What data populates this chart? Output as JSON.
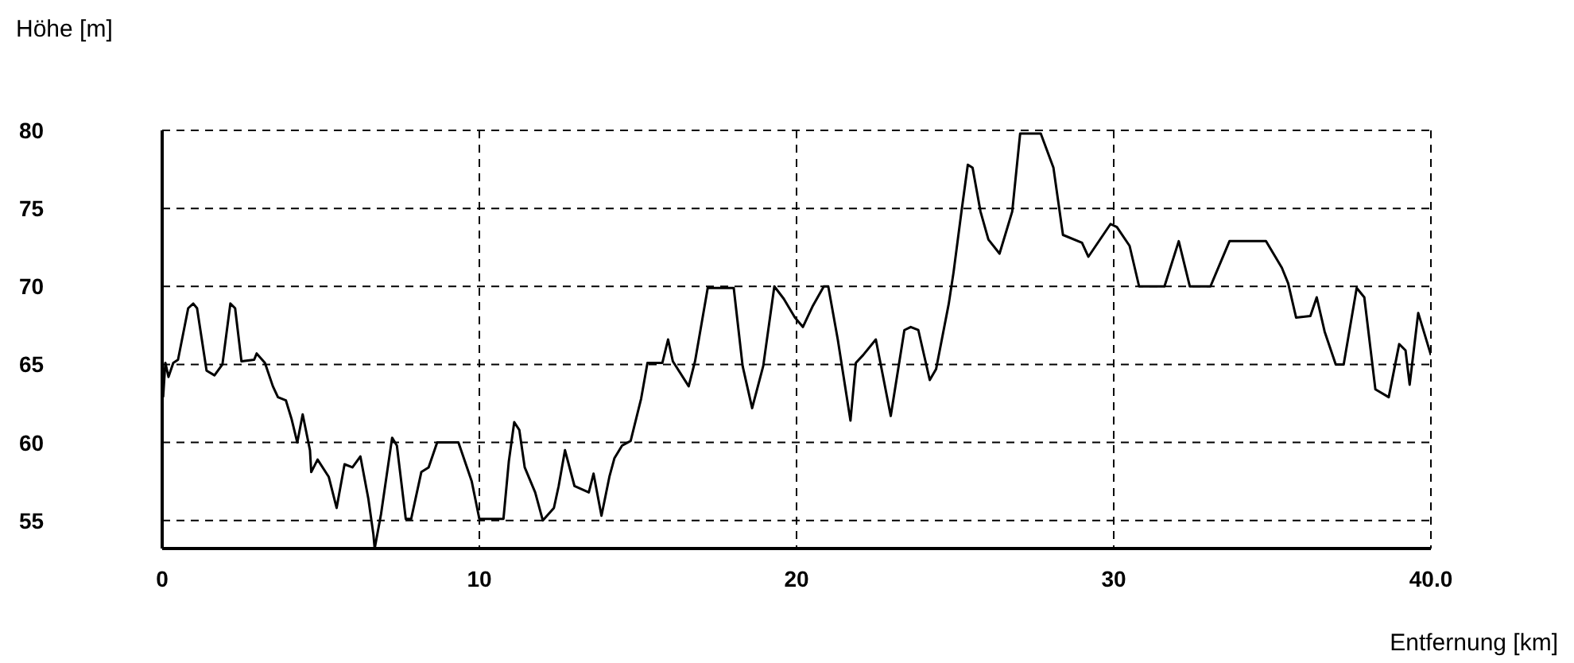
{
  "chart_data": {
    "type": "line",
    "xlabel": "Entfernung [km]",
    "ylabel": "Höhe [m]",
    "xlim": [
      0,
      40
    ],
    "xticks": [
      0,
      10,
      20,
      30,
      {
        "value": 40,
        "label": "40.0"
      }
    ],
    "ylim": [
      53.2,
      80
    ],
    "yticks": [
      55,
      60,
      65,
      70,
      75,
      80
    ],
    "grid": true,
    "marker": "none",
    "line_style": "solid",
    "series": [
      {
        "color": "#000000",
        "x": [
          0.03,
          0.1,
          0.2,
          0.35,
          0.5,
          0.82,
          0.98,
          1.1,
          1.4,
          1.65,
          1.9,
          2.15,
          2.3,
          2.5,
          2.9,
          2.98,
          3.24,
          3.49,
          3.65,
          3.9,
          4.08,
          4.26,
          4.43,
          4.66,
          4.7,
          4.9,
          5.25,
          5.5,
          5.75,
          6.0,
          6.25,
          6.5,
          6.66,
          6.7,
          6.9,
          7.25,
          7.4,
          7.68,
          7.85,
          8.17,
          8.4,
          8.67,
          9.34,
          9.76,
          10.0,
          10.76,
          10.93,
          11.1,
          11.26,
          11.43,
          11.76,
          12.0,
          12.35,
          12.5,
          12.7,
          13.0,
          13.45,
          13.6,
          13.85,
          14.1,
          14.26,
          14.5,
          14.77,
          15.1,
          15.3,
          15.77,
          15.95,
          16.1,
          16.6,
          16.8,
          17.2,
          18.02,
          18.3,
          18.6,
          18.95,
          19.3,
          19.6,
          19.95,
          20.2,
          20.5,
          20.86,
          21.0,
          21.3,
          21.7,
          21.87,
          22.1,
          22.5,
          22.97,
          23.4,
          23.6,
          23.84,
          24.2,
          24.4,
          24.8,
          24.95,
          25.2,
          25.4,
          25.55,
          25.8,
          26.05,
          26.4,
          26.8,
          27.05,
          27.7,
          28.1,
          28.4,
          29.0,
          29.2,
          29.9,
          30.1,
          30.5,
          30.8,
          31.6,
          32.05,
          32.4,
          33.05,
          33.65,
          34.8,
          35.3,
          35.5,
          35.75,
          36.2,
          36.4,
          36.65,
          37.0,
          37.25,
          37.66,
          37.9,
          38.25,
          38.67,
          39.0,
          39.2,
          39.33,
          39.6,
          40.0
        ],
        "values": [
          62.9,
          65.1,
          64.2,
          65.1,
          65.3,
          68.6,
          68.9,
          68.6,
          64.6,
          64.3,
          65.0,
          68.9,
          68.6,
          65.2,
          65.3,
          65.7,
          65.1,
          63.6,
          62.9,
          62.7,
          61.5,
          60.0,
          61.8,
          59.5,
          58.1,
          58.9,
          57.8,
          55.8,
          58.6,
          58.4,
          59.1,
          56.4,
          54.1,
          53.2,
          55.4,
          60.3,
          59.8,
          55.1,
          55.1,
          58.1,
          58.4,
          60.0,
          60.0,
          57.5,
          55.1,
          55.1,
          58.8,
          61.3,
          60.8,
          58.4,
          56.8,
          55.0,
          55.8,
          57.2,
          59.5,
          57.2,
          56.8,
          58.0,
          55.3,
          57.8,
          59.0,
          59.8,
          60.1,
          62.8,
          65.1,
          65.1,
          66.6,
          65.2,
          63.6,
          65.2,
          69.9,
          69.9,
          64.9,
          62.2,
          64.9,
          70.0,
          69.2,
          68.0,
          67.4,
          68.7,
          70.0,
          70.0,
          66.6,
          61.4,
          65.1,
          65.6,
          66.6,
          61.7,
          67.2,
          67.4,
          67.2,
          64.0,
          64.7,
          68.9,
          70.9,
          74.8,
          77.8,
          77.6,
          74.8,
          73.0,
          72.1,
          74.8,
          79.8,
          79.8,
          77.6,
          73.3,
          72.8,
          71.9,
          74.0,
          73.8,
          72.6,
          70.0,
          70.0,
          72.9,
          70.0,
          70.0,
          72.9,
          72.9,
          71.2,
          70.2,
          68.0,
          68.1,
          69.3,
          67.1,
          65.0,
          65.0,
          69.9,
          69.3,
          63.4,
          62.9,
          66.3,
          65.9,
          63.7,
          68.3,
          65.6
        ]
      }
    ]
  }
}
